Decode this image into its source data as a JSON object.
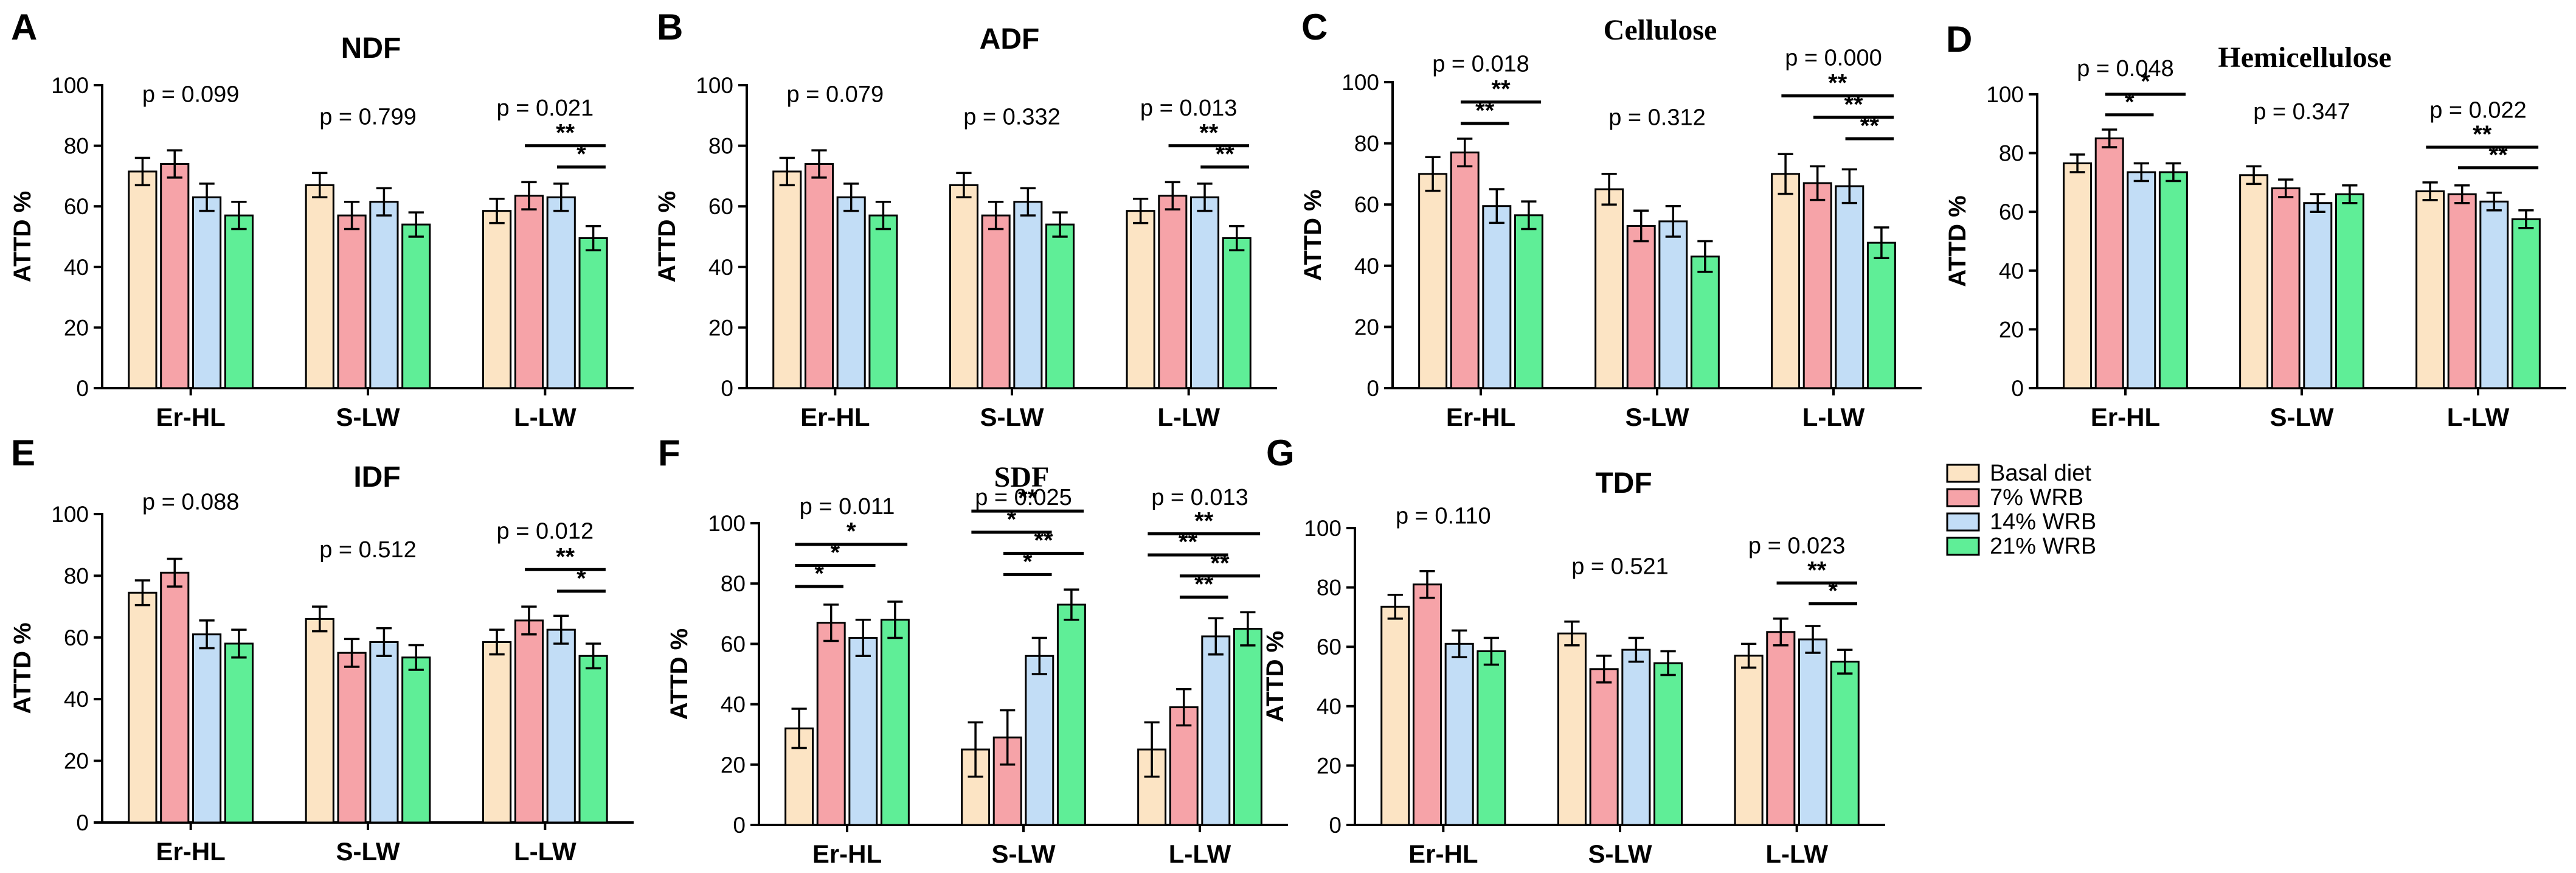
{
  "legend": {
    "items": [
      {
        "label": "Basal diet",
        "color": "#FCE4C4"
      },
      {
        "label": "7% WRB",
        "color": "#F6A3A8"
      },
      {
        "label": "14% WRB",
        "color": "#C2DDF6"
      },
      {
        "label": "21% WRB",
        "color": "#5FEE97"
      }
    ]
  },
  "chart_data": [
    {
      "panel": "A",
      "type": "bar",
      "title": "NDF",
      "title_font": "sans",
      "ylabel": "ATTD  %",
      "ylim": [
        0,
        100
      ],
      "yticks": [
        0,
        20,
        40,
        60,
        80,
        100
      ],
      "categories": [
        "Er-HL",
        "S-LW",
        "L-LW"
      ],
      "series": [
        {
          "name": "Basal diet",
          "values": [
            71.5,
            67,
            58.5
          ],
          "errors": [
            4.5,
            4,
            4
          ]
        },
        {
          "name": "7% WRB",
          "values": [
            74,
            57,
            63.5
          ],
          "errors": [
            4.5,
            4.5,
            4.5
          ]
        },
        {
          "name": "14% WRB",
          "values": [
            63,
            61.5,
            63
          ],
          "errors": [
            4.5,
            4.5,
            4.5
          ]
        },
        {
          "name": "21% WRB",
          "values": [
            57,
            54,
            49.5
          ],
          "errors": [
            4.5,
            4,
            4
          ]
        }
      ],
      "p_values": [
        "p = 0.099",
        "p = 0.799",
        "p = 0.021"
      ],
      "significance": [
        {
          "group": 2,
          "from": 1,
          "to": 3,
          "label": "**"
        },
        {
          "group": 2,
          "from": 2,
          "to": 3,
          "label": "*"
        }
      ]
    },
    {
      "panel": "B",
      "type": "bar",
      "title": "ADF",
      "title_font": "sans",
      "ylabel": "ATTD  %",
      "ylim": [
        0,
        100
      ],
      "yticks": [
        0,
        20,
        40,
        60,
        80,
        100
      ],
      "categories": [
        "Er-HL",
        "S-LW",
        "L-LW"
      ],
      "series": [
        {
          "name": "Basal diet",
          "values": [
            71.5,
            67,
            58.5
          ],
          "errors": [
            4.5,
            4,
            4
          ]
        },
        {
          "name": "7% WRB",
          "values": [
            74,
            57,
            63.5
          ],
          "errors": [
            4.5,
            4.5,
            4.5
          ]
        },
        {
          "name": "14% WRB",
          "values": [
            63,
            61.5,
            63
          ],
          "errors": [
            4.5,
            4.5,
            4.5
          ]
        },
        {
          "name": "21% WRB",
          "values": [
            57,
            54,
            49.5
          ],
          "errors": [
            4.5,
            4,
            4
          ]
        }
      ],
      "p_values": [
        "p = 0.079",
        "p = 0.332",
        "p = 0.013"
      ],
      "significance": [
        {
          "group": 2,
          "from": 1,
          "to": 3,
          "label": "**"
        },
        {
          "group": 2,
          "from": 2,
          "to": 3,
          "label": "**"
        }
      ]
    },
    {
      "panel": "C",
      "type": "bar",
      "title": "Cellulose",
      "title_font": "serif",
      "ylabel": "ATTD  %",
      "ylim": [
        0,
        100
      ],
      "yticks": [
        0,
        20,
        40,
        60,
        80,
        100
      ],
      "categories": [
        "Er-HL",
        "S-LW",
        "L-LW"
      ],
      "series": [
        {
          "name": "Basal diet",
          "values": [
            70,
            65,
            70
          ],
          "errors": [
            5.5,
            5,
            6.5
          ]
        },
        {
          "name": "7% WRB",
          "values": [
            77,
            53,
            67
          ],
          "errors": [
            4.5,
            5,
            5.5
          ]
        },
        {
          "name": "14% WRB",
          "values": [
            59.5,
            54.5,
            66
          ],
          "errors": [
            5.5,
            5,
            5.5
          ]
        },
        {
          "name": "21% WRB",
          "values": [
            56.5,
            43,
            47.5
          ],
          "errors": [
            4.5,
            5,
            5
          ]
        }
      ],
      "p_values": [
        "p = 0.018",
        "p = 0.312",
        "p = 0.000"
      ],
      "significance": [
        {
          "group": 0,
          "from": 1,
          "to": 3,
          "label": "**"
        },
        {
          "group": 0,
          "from": 1,
          "to": 2,
          "label": "**"
        },
        {
          "group": 2,
          "from": 0,
          "to": 3,
          "label": "**"
        },
        {
          "group": 2,
          "from": 1,
          "to": 3,
          "label": "**"
        },
        {
          "group": 2,
          "from": 2,
          "to": 3,
          "label": "**"
        }
      ]
    },
    {
      "panel": "D",
      "type": "bar",
      "title": "Hemicellulose",
      "title_font": "serif",
      "ylabel": "ATTD  %",
      "ylim": [
        0,
        100
      ],
      "yticks": [
        0,
        20,
        40,
        60,
        80,
        100
      ],
      "categories": [
        "Er-HL",
        "S-LW",
        "L-LW"
      ],
      "series": [
        {
          "name": "Basal diet",
          "values": [
            76.5,
            72.5,
            67
          ],
          "errors": [
            3,
            3,
            3
          ]
        },
        {
          "name": "7% WRB",
          "values": [
            85,
            68,
            66
          ],
          "errors": [
            3,
            3,
            3
          ]
        },
        {
          "name": "14% WRB",
          "values": [
            73.5,
            63,
            63.5
          ],
          "errors": [
            3,
            3,
            3
          ]
        },
        {
          "name": "21% WRB",
          "values": [
            73.5,
            66,
            57.5
          ],
          "errors": [
            3,
            3,
            3
          ]
        }
      ],
      "p_values": [
        "p = 0.048",
        "p = 0.347",
        "p = 0.022"
      ],
      "significance": [
        {
          "group": 0,
          "from": 1,
          "to": 3,
          "label": "*"
        },
        {
          "group": 0,
          "from": 1,
          "to": 2,
          "label": "*"
        },
        {
          "group": 2,
          "from": 0,
          "to": 3,
          "label": "**"
        },
        {
          "group": 2,
          "from": 1,
          "to": 3,
          "label": "**"
        }
      ]
    },
    {
      "panel": "E",
      "type": "bar",
      "title": "IDF",
      "title_font": "sans",
      "ylabel": "ATTD  %",
      "ylim": [
        0,
        100
      ],
      "yticks": [
        0,
        20,
        40,
        60,
        80,
        100
      ],
      "categories": [
        "Er-HL",
        "S-LW",
        "L-LW"
      ],
      "series": [
        {
          "name": "Basal diet",
          "values": [
            74.5,
            66,
            58.5
          ],
          "errors": [
            4,
            4,
            4
          ]
        },
        {
          "name": "7% WRB",
          "values": [
            81,
            55,
            65.5
          ],
          "errors": [
            4.5,
            4.5,
            4.5
          ]
        },
        {
          "name": "14% WRB",
          "values": [
            61,
            58.5,
            62.5
          ],
          "errors": [
            4.5,
            4.5,
            4.5
          ]
        },
        {
          "name": "21% WRB",
          "values": [
            58,
            53.5,
            54
          ],
          "errors": [
            4.5,
            4,
            4
          ]
        }
      ],
      "p_values": [
        "p = 0.088",
        "p = 0.512",
        "p = 0.012"
      ],
      "significance": [
        {
          "group": 2,
          "from": 1,
          "to": 3,
          "label": "**"
        },
        {
          "group": 2,
          "from": 2,
          "to": 3,
          "label": "*"
        }
      ]
    },
    {
      "panel": "F",
      "type": "bar",
      "title": "SDF",
      "title_font": "serif",
      "ylabel": "ATTD  %",
      "ylim": [
        0,
        100
      ],
      "yticks": [
        0,
        20,
        40,
        60,
        80,
        100
      ],
      "categories": [
        "Er-HL",
        "S-LW",
        "L-LW"
      ],
      "series": [
        {
          "name": "Basal diet",
          "values": [
            32,
            25,
            25
          ],
          "errors": [
            6.5,
            9,
            9
          ]
        },
        {
          "name": "7% WRB",
          "values": [
            67,
            29,
            39
          ],
          "errors": [
            6,
            9,
            6
          ]
        },
        {
          "name": "14% WRB",
          "values": [
            62,
            56,
            62.5
          ],
          "errors": [
            6,
            6,
            6
          ]
        },
        {
          "name": "21% WRB",
          "values": [
            68,
            73,
            65
          ],
          "errors": [
            6,
            5,
            5.5
          ]
        }
      ],
      "p_values": [
        "p = 0.011",
        "p = 0.025",
        "p = 0.013"
      ],
      "significance": [
        {
          "group": 0,
          "from": 0,
          "to": 3,
          "label": "*"
        },
        {
          "group": 0,
          "from": 0,
          "to": 2,
          "label": "*"
        },
        {
          "group": 0,
          "from": 0,
          "to": 1,
          "label": "*"
        },
        {
          "group": 1,
          "from": 0,
          "to": 3,
          "label": "**"
        },
        {
          "group": 1,
          "from": 1,
          "to": 3,
          "label": "**"
        },
        {
          "group": 1,
          "from": 0,
          "to": 2,
          "label": "*"
        },
        {
          "group": 1,
          "from": 1,
          "to": 2,
          "label": "*"
        },
        {
          "group": 2,
          "from": 0,
          "to": 3,
          "label": "**"
        },
        {
          "group": 2,
          "from": 1,
          "to": 3,
          "label": "**"
        },
        {
          "group": 2,
          "from": 0,
          "to": 2,
          "label": "**"
        },
        {
          "group": 2,
          "from": 1,
          "to": 2,
          "label": "**"
        }
      ]
    },
    {
      "panel": "G",
      "type": "bar",
      "title": "TDF",
      "title_font": "sans",
      "ylabel": "ATTD  %",
      "ylim": [
        0,
        100
      ],
      "yticks": [
        0,
        20,
        40,
        60,
        80,
        100
      ],
      "categories": [
        "Er-HL",
        "S-LW",
        "L-LW"
      ],
      "series": [
        {
          "name": "Basal diet",
          "values": [
            73.5,
            64.5,
            57
          ],
          "errors": [
            4,
            4,
            4
          ]
        },
        {
          "name": "7% WRB",
          "values": [
            81,
            52.5,
            65
          ],
          "errors": [
            4.5,
            4.5,
            4.5
          ]
        },
        {
          "name": "14% WRB",
          "values": [
            61,
            59,
            62.5
          ],
          "errors": [
            4.5,
            4,
            4.5
          ]
        },
        {
          "name": "21% WRB",
          "values": [
            58.5,
            54.5,
            55
          ],
          "errors": [
            4.5,
            4,
            4
          ]
        }
      ],
      "p_values": [
        "p = 0.110",
        "p = 0.521",
        "p = 0.023"
      ],
      "significance": [
        {
          "group": 2,
          "from": 1,
          "to": 3,
          "label": "**"
        },
        {
          "group": 2,
          "from": 2,
          "to": 3,
          "label": "*"
        }
      ]
    }
  ]
}
